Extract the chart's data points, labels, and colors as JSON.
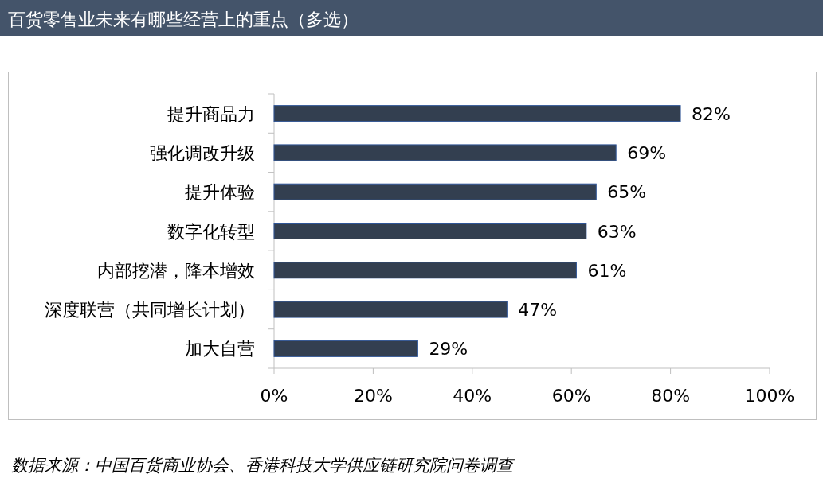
{
  "chart_data": {
    "type": "bar",
    "orientation": "horizontal",
    "title": "百货零售业未来有哪些经营上的重点（多选）",
    "categories": [
      "提升商品力",
      "强化调改升级",
      "提升体验",
      "数字化转型",
      "内部挖潜，降本增效",
      "深度联营（共同增长计划）",
      "加大自营"
    ],
    "values": [
      82,
      69,
      65,
      63,
      61,
      47,
      29
    ],
    "value_labels": [
      "82%",
      "69%",
      "65%",
      "63%",
      "61%",
      "47%",
      "29%"
    ],
    "color": "#333f50",
    "xlim": [
      0,
      100
    ],
    "xticks": [
      {
        "value": 0,
        "label": "0%"
      },
      {
        "value": 20,
        "label": "20%"
      },
      {
        "value": 40,
        "label": "40%"
      },
      {
        "value": 60,
        "label": "60%"
      },
      {
        "value": 80,
        "label": "80%"
      },
      {
        "value": 100,
        "label": "100%"
      }
    ],
    "grid": false,
    "annotations": [
      "数据来源：中国百货商业协会、香港科技大学供应链研究院问卷调查"
    ]
  }
}
